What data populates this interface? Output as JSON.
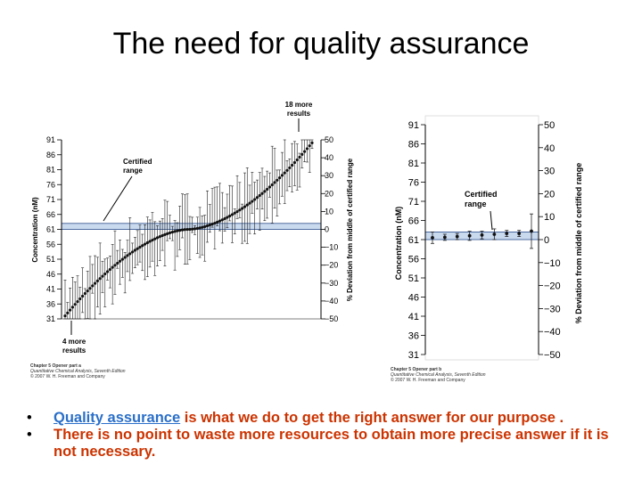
{
  "slide": {
    "title": "The need for quality assurance",
    "bullets": [
      {
        "link_text": "Quality assurance",
        "text": " is what we do to get the right answer for our purpose ."
      },
      {
        "text": "There is no point to waste more resources to obtain more precise answer if it is not necessary."
      }
    ]
  },
  "colors": {
    "band": "#c9d9ee",
    "band_line": "#2c4f8c",
    "bullet_text": "#cc3300",
    "link": "#2a6fc9"
  },
  "chart_data": [
    {
      "type": "scatter",
      "ylabel": "Concentration (nM)",
      "y2label": "% Deviation from middle of certified range",
      "ylim": [
        31,
        91
      ],
      "yticks": [
        31,
        36,
        41,
        46,
        51,
        56,
        61,
        66,
        71,
        76,
        81,
        86,
        91
      ],
      "y2lim": [
        -50,
        50
      ],
      "y2ticks": [
        50,
        40,
        30,
        20,
        10,
        0,
        -10,
        -20,
        -30,
        -40,
        -50
      ],
      "y2tick_labels": [
        "50",
        "40",
        "30",
        "20",
        "10",
        "0",
        "−10",
        "−20",
        "−30",
        "−40",
        "−50"
      ],
      "certified_range": [
        61,
        63
      ],
      "annotations": {
        "top": [
          "18 more",
          "results"
        ],
        "bottom": [
          "4 more",
          "results"
        ],
        "band": [
          "Certified",
          "range"
        ]
      },
      "caption": [
        "Chapter 5 Opener part a",
        "Quantitative Chemical Analysis, Seventh Edition",
        "© 2007 W. H. Freeman and Company"
      ],
      "n_labs": 100,
      "y_start": 32,
      "y_end": 90
    },
    {
      "type": "scatter",
      "ylabel": "Concentration (nM)",
      "y2label": "% Deviation from middle of certified range",
      "ylim": [
        31,
        91
      ],
      "yticks": [
        91,
        86,
        81,
        76,
        71,
        66,
        61,
        56,
        51,
        46,
        41,
        36,
        31
      ],
      "y2lim": [
        -50,
        50
      ],
      "y2ticks": [
        50,
        40,
        30,
        20,
        10,
        0,
        -10,
        -20,
        -30,
        -40,
        -50
      ],
      "y2tick_labels": [
        "50",
        "40",
        "30",
        "20",
        "10",
        "0",
        "−10",
        "−20",
        "−30",
        "−40",
        "−50"
      ],
      "certified_range": [
        61,
        63
      ],
      "annotations": {
        "band": [
          "Certified",
          "range"
        ]
      },
      "caption": [
        "Chapter 5 Opener part b",
        "Quantitative Chemical Analysis, Seventh Edition",
        "© 2007 W. H. Freeman and Company"
      ],
      "points": [
        {
          "y": 61.5,
          "err": 1.5
        },
        {
          "y": 61.6,
          "err": 0.8
        },
        {
          "y": 61.8,
          "err": 0.8
        },
        {
          "y": 62.0,
          "err": 1.2
        },
        {
          "y": 62.2,
          "err": 1.0
        },
        {
          "y": 62.4,
          "err": 1.4
        },
        {
          "y": 62.6,
          "err": 0.8
        },
        {
          "y": 62.6,
          "err": 0.8
        },
        {
          "y": 63.2,
          "err": 4.5
        }
      ]
    }
  ]
}
